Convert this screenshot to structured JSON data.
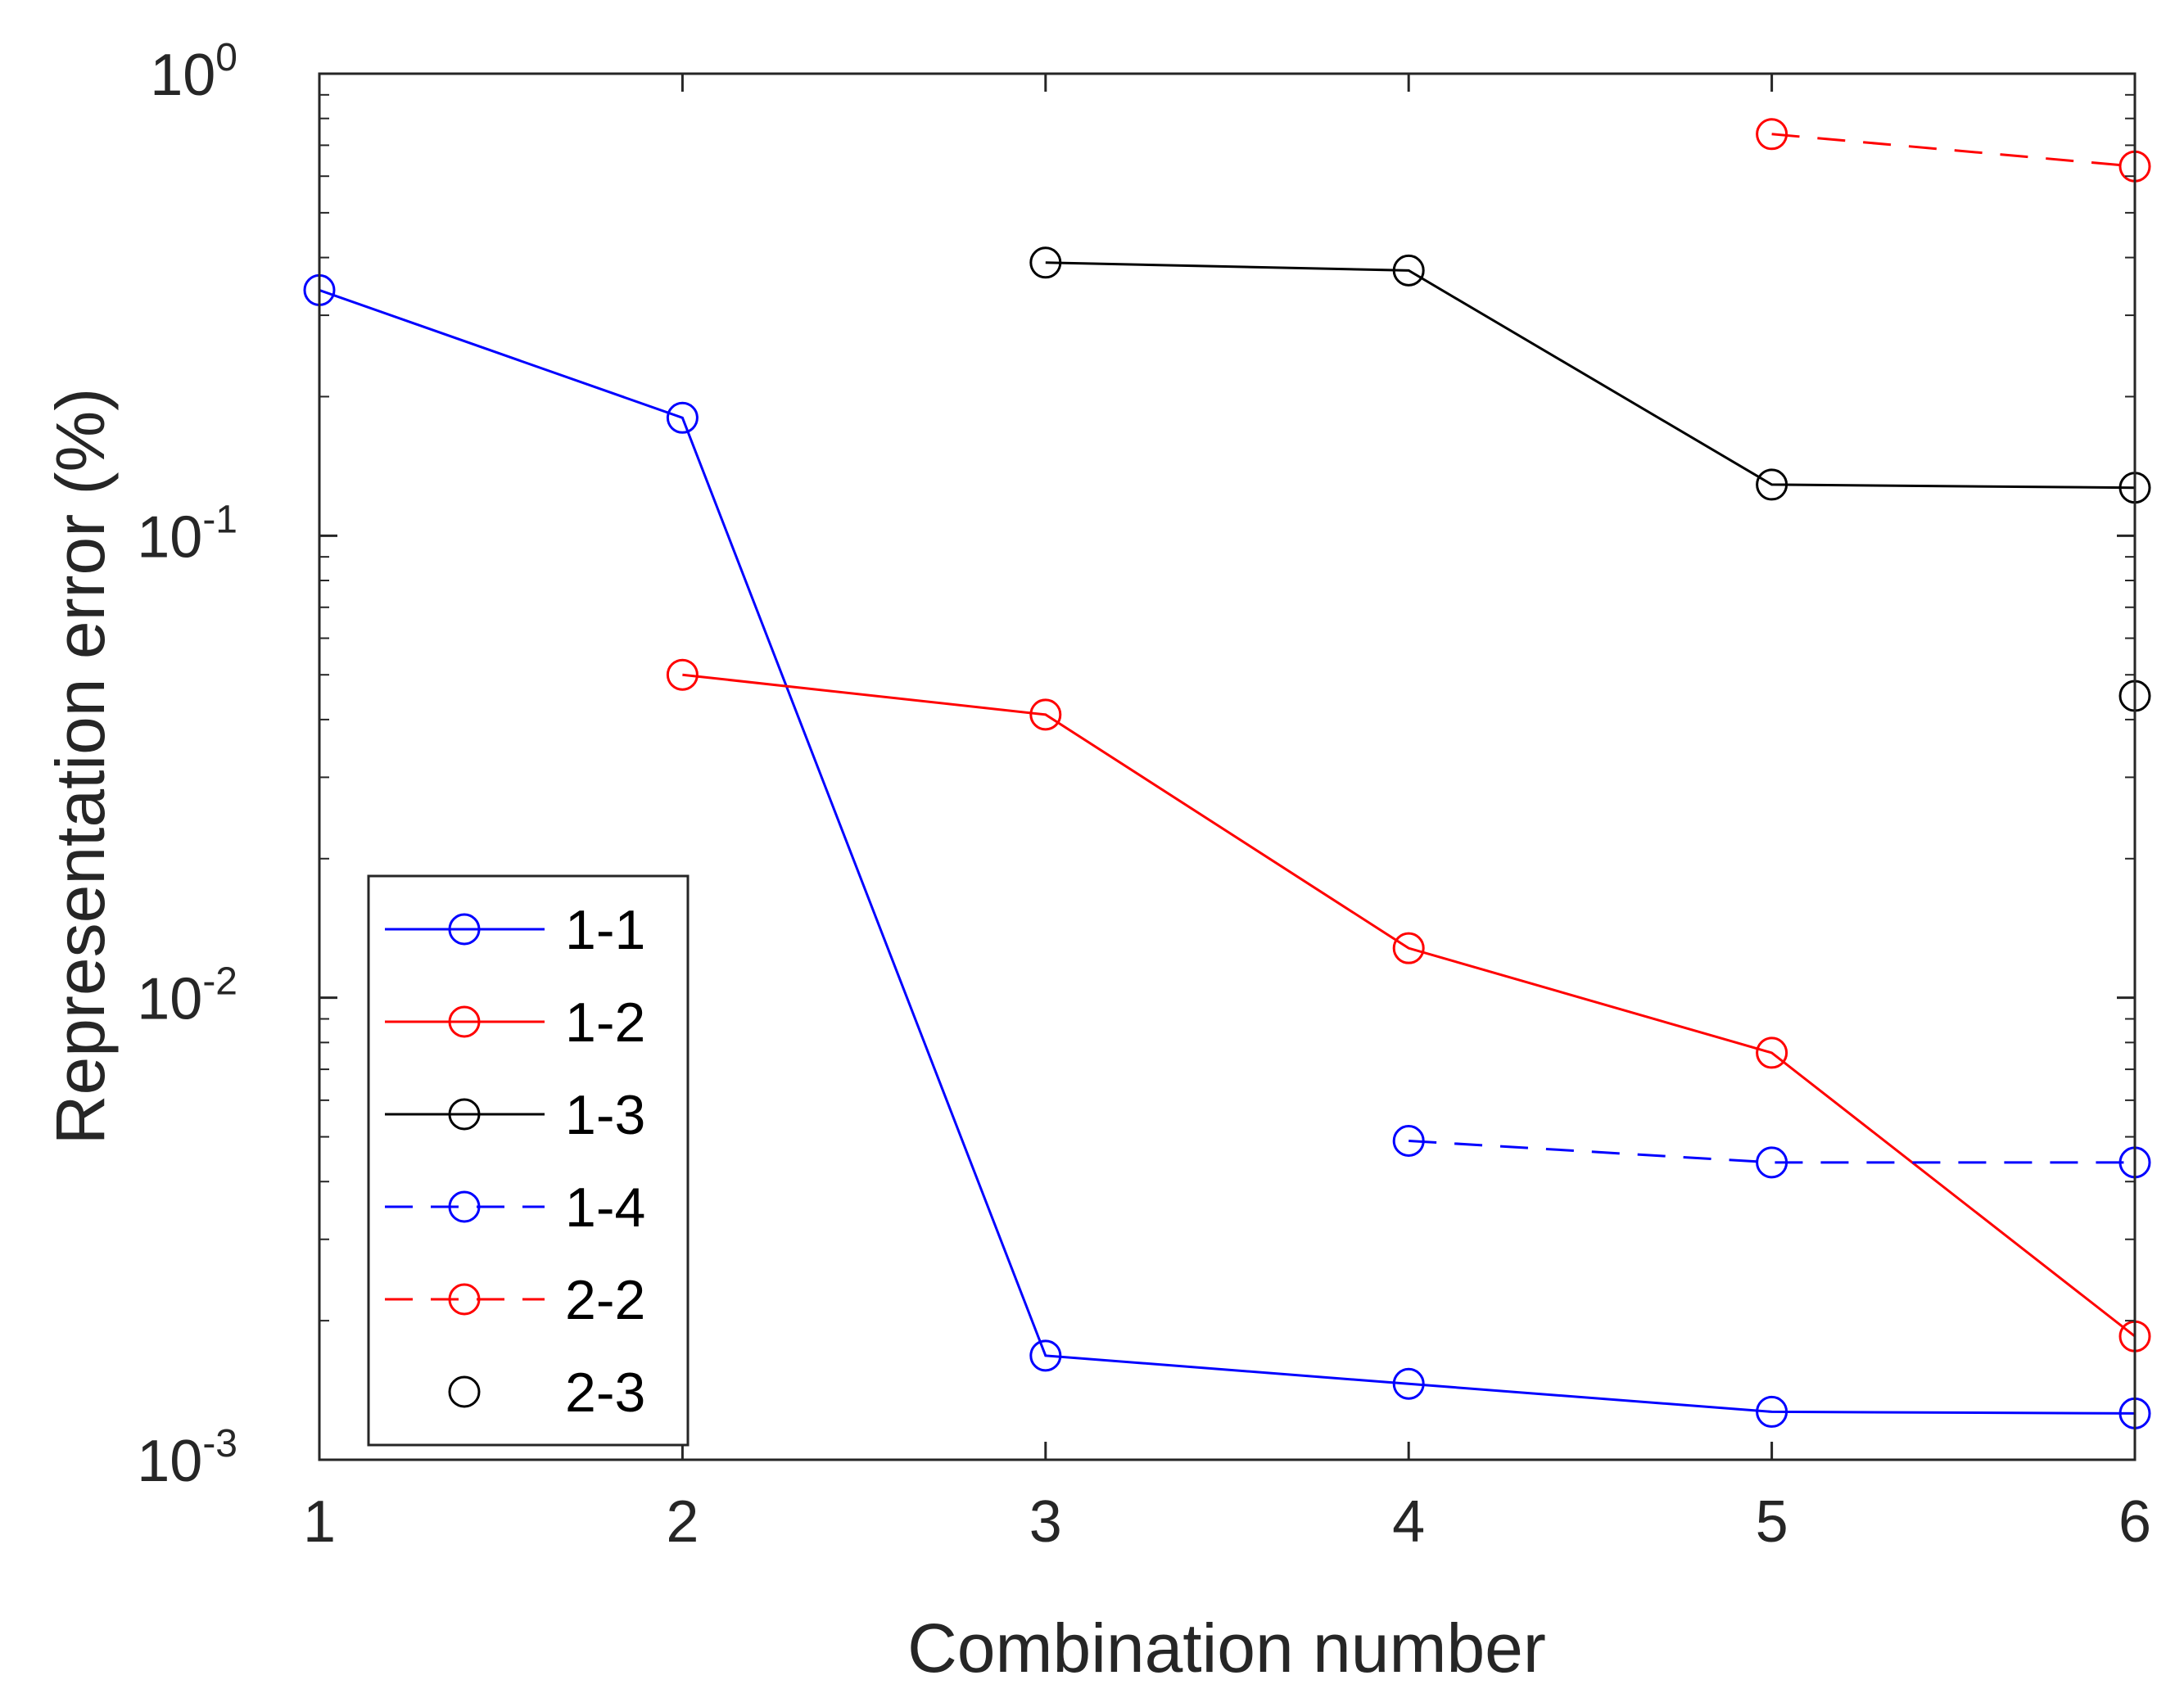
{
  "chart_data": {
    "type": "line",
    "title": "",
    "xlabel": "Combination number",
    "ylabel": "Representation error (%)",
    "x": [
      1,
      2,
      3,
      4,
      5,
      6
    ],
    "xlim": [
      1,
      6
    ],
    "ylim": [
      0.001,
      1
    ],
    "yscale": "log",
    "x_ticks": [
      "1",
      "2",
      "3",
      "4",
      "5",
      "6"
    ],
    "y_ticks": [
      {
        "base": "10",
        "exp": "-3",
        "value": 0.001
      },
      {
        "base": "10",
        "exp": "-2",
        "value": 0.01
      },
      {
        "base": "10",
        "exp": "-1",
        "value": 0.1
      },
      {
        "base": "10",
        "exp": "0",
        "value": 1
      }
    ],
    "grid": false,
    "legend_position": "bottom-left",
    "series": [
      {
        "name": "1-1",
        "color": "#0000ff",
        "line": "solid",
        "marker": "circle",
        "values": [
          0.34,
          0.18,
          0.00168,
          0.00146,
          0.00127,
          0.00126
        ]
      },
      {
        "name": "1-2",
        "color": "#ff0000",
        "line": "solid",
        "marker": "circle",
        "values": [
          null,
          0.05,
          0.041,
          0.0128,
          0.0076,
          0.00185
        ]
      },
      {
        "name": "1-3",
        "color": "#000000",
        "line": "solid",
        "marker": "circle",
        "values": [
          null,
          null,
          0.39,
          0.375,
          0.129,
          0.127
        ]
      },
      {
        "name": "1-4",
        "color": "#0000ff",
        "line": "dashed",
        "marker": "circle",
        "values": [
          null,
          null,
          null,
          0.0049,
          0.0044,
          0.0044
        ]
      },
      {
        "name": "2-2",
        "color": "#ff0000",
        "line": "dashed",
        "marker": "circle",
        "values": [
          null,
          null,
          null,
          null,
          0.74,
          0.63
        ]
      },
      {
        "name": "2-3",
        "color": "#000000",
        "line": "none",
        "marker": "circle",
        "values": [
          null,
          null,
          null,
          null,
          null,
          0.045
        ]
      }
    ]
  }
}
